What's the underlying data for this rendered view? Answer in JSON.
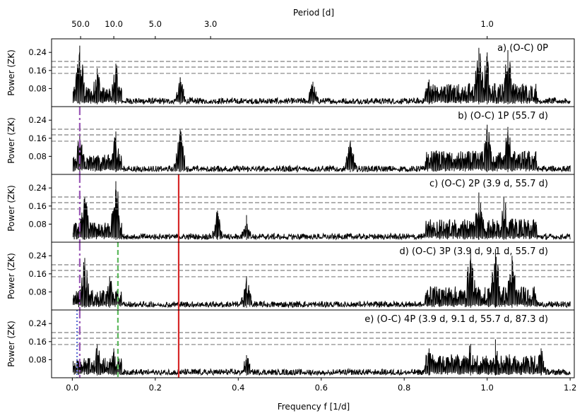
{
  "chart_data": {
    "type": "line",
    "title": "",
    "top_axis": {
      "label": "Period [d]",
      "ticks": [
        {
          "value": 50.0,
          "label": "50.0"
        },
        {
          "value": 10.0,
          "label": "10.0"
        },
        {
          "value": 5.0,
          "label": "5.0"
        },
        {
          "value": 3.0,
          "label": "3.0"
        },
        {
          "value": 1.0,
          "label": "1.0"
        }
      ]
    },
    "xlabel": "Frequency f [1/d]",
    "xlim": [
      -0.05,
      1.21
    ],
    "xticks": [
      {
        "value": 0.0,
        "label": "0.0"
      },
      {
        "value": 0.2,
        "label": "0.2"
      },
      {
        "value": 0.4,
        "label": "0.4"
      },
      {
        "value": 0.6,
        "label": "0.6"
      },
      {
        "value": 0.8,
        "label": "0.8"
      },
      {
        "value": 1.0,
        "label": "1.0"
      },
      {
        "value": 1.2,
        "label": "1.2"
      }
    ],
    "ylabel": "Power (ZK)",
    "ylim": [
      0,
      0.3
    ],
    "yticks": [
      {
        "value": 0.08,
        "label": "0.08"
      },
      {
        "value": 0.16,
        "label": "0.16"
      },
      {
        "value": 0.24,
        "label": "0.24"
      }
    ],
    "fap_levels": [
      0.2,
      0.175,
      0.147
    ],
    "colors": {
      "spectrum": "#000000",
      "fap": "#808080",
      "p3_9": "#d62728",
      "p9_1": "#5cb85c",
      "p55_7": "#9b59b6",
      "p87_3": "#5b6fd6"
    },
    "panels": [
      {
        "label": "a) (O-C) 0P",
        "peaks": [
          {
            "f": 0.018,
            "p": 0.27
          },
          {
            "f": 0.06,
            "p": 0.17
          },
          {
            "f": 0.105,
            "p": 0.19
          },
          {
            "f": 0.26,
            "p": 0.13
          },
          {
            "f": 0.58,
            "p": 0.11
          },
          {
            "f": 0.86,
            "p": 0.12
          },
          {
            "f": 0.98,
            "p": 0.26
          },
          {
            "f": 1.0,
            "p": 0.24
          },
          {
            "f": 1.05,
            "p": 0.25
          }
        ],
        "markers": []
      },
      {
        "label": "b) (O-C) 1P (55.7 d)",
        "peaks": [
          {
            "f": 0.018,
            "p": 0.18
          },
          {
            "f": 0.105,
            "p": 0.19
          },
          {
            "f": 0.26,
            "p": 0.2
          },
          {
            "f": 0.67,
            "p": 0.15
          },
          {
            "f": 1.0,
            "p": 0.22
          },
          {
            "f": 1.05,
            "p": 0.21
          }
        ],
        "markers": [
          {
            "f": 0.01795,
            "kind": "p55_7",
            "dash": "12,4,3,4"
          }
        ]
      },
      {
        "label": "c) (O-C) 2P (3.9 d, 55.7 d)",
        "peaks": [
          {
            "f": 0.03,
            "p": 0.2
          },
          {
            "f": 0.105,
            "p": 0.27
          },
          {
            "f": 0.35,
            "p": 0.14
          },
          {
            "f": 0.42,
            "p": 0.12
          },
          {
            "f": 0.98,
            "p": 0.22
          },
          {
            "f": 1.04,
            "p": 0.2
          }
        ],
        "markers": [
          {
            "f": 0.01795,
            "kind": "p55_7",
            "dash": "12,4,3,4"
          },
          {
            "f": 0.2564,
            "kind": "p3_9",
            "dash": ""
          }
        ]
      },
      {
        "label": "d) (O-C) 3P (3.9 d, 9.1 d, 55.7 d)",
        "peaks": [
          {
            "f": 0.03,
            "p": 0.23
          },
          {
            "f": 0.09,
            "p": 0.15
          },
          {
            "f": 0.42,
            "p": 0.15
          },
          {
            "f": 0.96,
            "p": 0.26
          },
          {
            "f": 1.02,
            "p": 0.27
          },
          {
            "f": 1.06,
            "p": 0.24
          }
        ],
        "markers": [
          {
            "f": 0.01795,
            "kind": "p55_7",
            "dash": "12,4,3,4"
          },
          {
            "f": 0.1099,
            "kind": "p9_1",
            "dash": "7,4"
          },
          {
            "f": 0.2564,
            "kind": "p3_9",
            "dash": ""
          }
        ]
      },
      {
        "label": "e) (O-C) 4P (3.9 d, 9.1 d, 55.7 d, 87.3 d)",
        "peaks": [
          {
            "f": 0.06,
            "p": 0.15
          },
          {
            "f": 0.1,
            "p": 0.13
          },
          {
            "f": 0.42,
            "p": 0.1
          },
          {
            "f": 0.86,
            "p": 0.13
          },
          {
            "f": 0.96,
            "p": 0.15
          },
          {
            "f": 1.02,
            "p": 0.17
          },
          {
            "f": 1.13,
            "p": 0.13
          }
        ],
        "markers": [
          {
            "f": 0.01795,
            "kind": "p55_7",
            "dash": "12,4,3,4"
          },
          {
            "f": 0.01145,
            "kind": "p87_3",
            "dash": "2,3"
          },
          {
            "f": 0.1099,
            "kind": "p9_1",
            "dash": "7,4"
          },
          {
            "f": 0.2564,
            "kind": "p3_9",
            "dash": ""
          }
        ]
      }
    ]
  }
}
